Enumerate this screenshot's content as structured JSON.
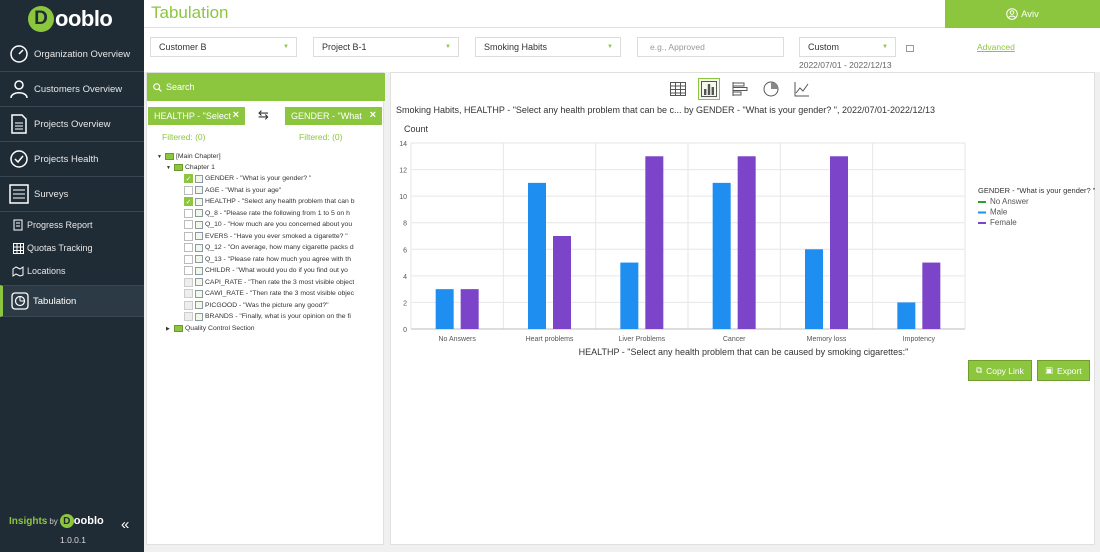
{
  "brand": {
    "logo_letter": "D",
    "logo_text": "ooblo"
  },
  "sidebar": {
    "items": [
      {
        "label": "Organization Overview"
      },
      {
        "label": "Customers Overview"
      },
      {
        "label": "Projects Overview"
      },
      {
        "label": "Projects Health"
      },
      {
        "label": "Surveys"
      },
      {
        "label": "Progress Report"
      },
      {
        "label": "Quotas Tracking"
      },
      {
        "label": "Locations"
      },
      {
        "label": "Tabulation"
      }
    ],
    "footer": {
      "insights": "Insights",
      "by": "by",
      "logo_letter": "D",
      "logo_text": "ooblo",
      "version": "1.0.0.1",
      "collapse": "«"
    }
  },
  "header": {
    "title": "Tabulation",
    "user": "Aviv"
  },
  "filters": {
    "customer": "Customer B",
    "project": "Project B-1",
    "survey": "Smoking Habits",
    "status_placeholder": "e.g., Approved",
    "period": "Custom",
    "date_range": "2022/07/01 - 2022/12/13",
    "advanced": "Advanced"
  },
  "left_panel": {
    "search_label": "Search",
    "chip_row": {
      "label": "HEALTHP - \"Select",
      "filtered": "Filtered: (0)"
    },
    "chip_col": {
      "label": "GENDER - \"What",
      "filtered": "Filtered: (0)"
    },
    "swap_symbol": "⇆",
    "tree": {
      "root": "[Main Chapter]",
      "chapter": "Chapter 1",
      "questions": [
        {
          "label": "GENDER - \"What is your gender? \"",
          "checked": true
        },
        {
          "label": "AGE - \"What is your age\"",
          "checked": false
        },
        {
          "label": "HEALTHP - \"Select any health problem that can b",
          "checked": true
        },
        {
          "label": "Q_8 - \"Please rate the following from 1 to 5 on h",
          "checked": false
        },
        {
          "label": "Q_10 - \"How much are you concerned about you",
          "checked": false
        },
        {
          "label": "EVERS - \"Have you ever smoked a cigarette? \"",
          "checked": false
        },
        {
          "label": "Q_12 - \"On average, how many cigarette packs d",
          "checked": false
        },
        {
          "label": "Q_13 - \"Please rate how much you agree with th",
          "checked": false
        },
        {
          "label": "CHILDR - \"What would you do if you find out yo",
          "checked": false
        },
        {
          "label": "CAPI_RATE - \"Then rate the 3 most visible object",
          "checked": false
        },
        {
          "label": "CAWI_RATE - \"Then rate the 3 most visible objec",
          "checked": false
        },
        {
          "label": "PICGOOD - \"Was the picture any good?\"",
          "checked": false
        },
        {
          "label": "BRANDS - \"Finally, what is your opinion on the fi",
          "checked": false
        }
      ],
      "other_chapter": "Quality Control Section"
    }
  },
  "chart_types": [
    "table-icon",
    "bar-chart-icon",
    "horizontal-bar-icon",
    "pie-chart-icon",
    "line-chart-icon"
  ],
  "chart_title": "Smoking Habits, HEALTHP - \"Select any health problem that can be c... by GENDER - \"What is your gender? \", 2022/07/01-2022/12/13",
  "chart_data": {
    "type": "bar",
    "ylabel": "Count",
    "xlabel": "HEALTHP - \"Select any health problem that can be caused by smoking cigarettes:\"",
    "categories": [
      "No Answers",
      "Heart problems",
      "Liver Problems",
      "Cancer",
      "Memory loss",
      "Impotency"
    ],
    "ylim": [
      0,
      14
    ],
    "yticks": [
      0,
      2,
      4,
      6,
      8,
      10,
      12,
      14
    ],
    "grid": true,
    "legend_title": "GENDER - \"What is your gender? \"",
    "legend_position": "right",
    "series": [
      {
        "name": "No Answer",
        "color": "#2ca02c",
        "values": [
          0,
          0,
          0,
          0,
          0,
          0
        ]
      },
      {
        "name": "Male",
        "color": "#1f8ef1",
        "values": [
          3,
          11,
          5,
          11,
          6,
          2
        ]
      },
      {
        "name": "Female",
        "color": "#7b44c9",
        "values": [
          3,
          7,
          13,
          13,
          13,
          5
        ]
      }
    ]
  },
  "actions": {
    "copy_link": "Copy Link",
    "export": "Export"
  },
  "colors": {
    "accent": "#8cc63f",
    "sidebar": "#1f2b35"
  }
}
